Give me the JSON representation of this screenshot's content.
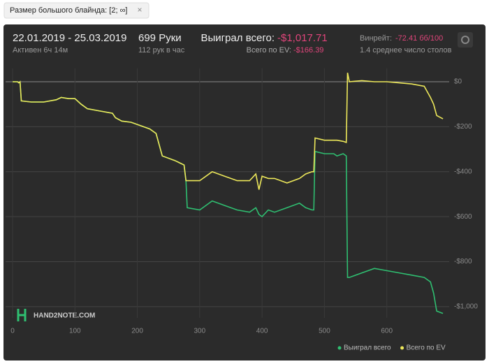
{
  "filter": {
    "label": "Размер большого блайнда: [2; ∞]"
  },
  "header": {
    "date_range": "22.01.2019 - 25.03.2019",
    "active": "Активен 6ч 14м",
    "hands": "699 Руки",
    "hands_per_hour": "112 рук в час",
    "won_label": "Выиграл всего:",
    "won_value": "-$1,017.71",
    "ev_label": "Всего по EV:",
    "ev_value": "-$166.39",
    "winrate_label": "Винрейт:",
    "winrate_value": "-72.41 бб/100",
    "tables": "1.4 среднее число столов"
  },
  "watermark": "HAND2NOTE.COM",
  "chart_data": {
    "type": "line",
    "x": [
      0,
      8,
      10,
      12,
      14,
      30,
      50,
      70,
      78,
      90,
      100,
      110,
      120,
      140,
      160,
      165,
      175,
      190,
      210,
      220,
      230,
      240,
      260,
      275,
      278,
      280,
      300,
      320,
      340,
      360,
      380,
      390,
      395,
      400,
      410,
      420,
      440,
      460,
      470,
      480,
      483,
      485,
      500,
      515,
      520,
      530,
      535,
      537,
      540,
      560,
      580,
      600,
      620,
      640,
      660,
      670,
      675,
      680,
      690
    ],
    "series": [
      {
        "name": "Выиграл всего",
        "color": "#2fbf71",
        "values": [
          0,
          0,
          -5,
          0,
          -85,
          -90,
          -90,
          -80,
          -70,
          -75,
          -75,
          -100,
          -120,
          -130,
          -140,
          -160,
          -175,
          -180,
          -200,
          -210,
          -230,
          -330,
          -350,
          -370,
          -440,
          -560,
          -570,
          -530,
          -550,
          -570,
          -580,
          -560,
          -590,
          -600,
          -570,
          -580,
          -560,
          -540,
          -560,
          -570,
          -570,
          -310,
          -320,
          -320,
          -330,
          -320,
          -330,
          -870,
          -870,
          -850,
          -830,
          -840,
          -850,
          -860,
          -870,
          -890,
          -940,
          -1020,
          -1030
        ]
      },
      {
        "name": "Всего по EV",
        "color": "#ede85a",
        "values": [
          0,
          0,
          -5,
          0,
          -85,
          -90,
          -90,
          -80,
          -70,
          -75,
          -75,
          -100,
          -120,
          -130,
          -140,
          -160,
          -175,
          -180,
          -200,
          -210,
          -230,
          -330,
          -350,
          -370,
          -440,
          -440,
          -440,
          -400,
          -420,
          -440,
          -440,
          -410,
          -480,
          -420,
          -430,
          -430,
          -450,
          -430,
          -410,
          -400,
          -400,
          -250,
          -260,
          -260,
          -260,
          -265,
          -270,
          40,
          0,
          5,
          0,
          0,
          -5,
          -10,
          -20,
          -70,
          -100,
          -150,
          -165
        ]
      }
    ],
    "xlim": [
      0,
      700
    ],
    "xticks": [
      0,
      100,
      200,
      300,
      400,
      500,
      600
    ],
    "ylim": [
      -1050,
      60
    ],
    "yticks": [
      {
        "value": 0,
        "label": "$0"
      },
      {
        "value": -200,
        "label": "-$200"
      },
      {
        "value": -400,
        "label": "-$400"
      },
      {
        "value": -600,
        "label": "-$600"
      },
      {
        "value": -800,
        "label": "-$800"
      },
      {
        "value": -1000,
        "label": "-$1,000"
      }
    ],
    "grid": true,
    "legend": "bottom-right"
  }
}
